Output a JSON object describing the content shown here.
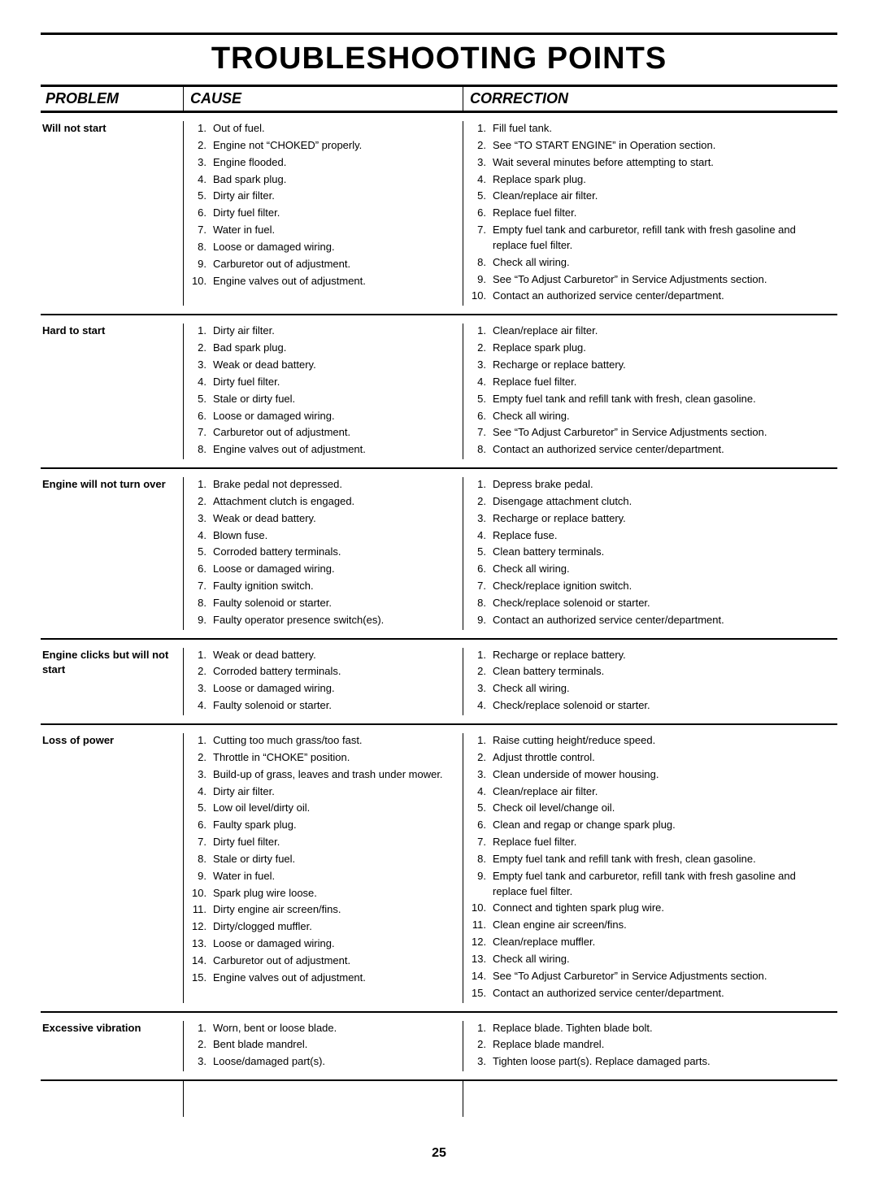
{
  "title": "TROUBLESHOOTING POINTS",
  "page_number": "25",
  "headers": {
    "problem": "PROBLEM",
    "cause": "CAUSE",
    "correction": "CORRECTION"
  },
  "sections": [
    {
      "problem": "Will not start",
      "cause": [
        "Out of fuel.",
        "Engine not “CHOKED” properly.",
        "Engine flooded.",
        "Bad spark plug.",
        "Dirty air filter.",
        "Dirty fuel filter.",
        "Water in fuel.",
        "Loose or damaged wiring.",
        "Carburetor out of adjustment.",
        "Engine valves out of adjustment."
      ],
      "correction": [
        "Fill fuel tank.",
        "See “TO START ENGINE” in Operation section.",
        "Wait several minutes before attempting to start.",
        "Replace spark plug.",
        "Clean/replace air filter.",
        "Replace fuel filter.",
        "Empty fuel tank and carburetor, refill tank with fresh gasoline and replace fuel filter.",
        "Check all wiring.",
        "See “To Adjust Carburetor” in Service Adjustments section.",
        "Contact an authorized service center/department."
      ]
    },
    {
      "problem": "Hard to start",
      "cause": [
        "Dirty air filter.",
        "Bad spark plug.",
        "Weak or dead battery.",
        "Dirty fuel filter.",
        "Stale or dirty fuel.",
        "Loose or damaged wiring.",
        "Carburetor out of adjustment.",
        "Engine valves out of adjustment."
      ],
      "correction": [
        "Clean/replace air filter.",
        "Replace spark plug.",
        "Recharge or replace battery.",
        "Replace fuel filter.",
        "Empty fuel tank and refill tank with fresh, clean gasoline.",
        "Check all wiring.",
        "See “To Adjust Carburetor” in Service Adjustments section.",
        "Contact an authorized service center/department."
      ]
    },
    {
      "problem": "Engine will not turn over",
      "cause": [
        "Brake pedal not depressed.",
        "Attachment clutch is engaged.",
        "Weak or dead battery.",
        "Blown fuse.",
        "Corroded battery terminals.",
        "Loose or damaged wiring.",
        "Faulty ignition switch.",
        "Faulty solenoid or starter.",
        "Faulty operator presence switch(es)."
      ],
      "correction": [
        "Depress brake pedal.",
        "Disengage attachment clutch.",
        "Recharge or replace battery.",
        "Replace fuse.",
        "Clean battery terminals.",
        "Check all wiring.",
        "Check/replace ignition switch.",
        "Check/replace solenoid or starter.",
        "Contact an authorized service center/department."
      ]
    },
    {
      "problem": "Engine clicks but will not start",
      "cause": [
        "Weak or dead battery.",
        "Corroded battery terminals.",
        "Loose or damaged wiring.",
        "Faulty solenoid or starter."
      ],
      "correction": [
        "Recharge or replace battery.",
        "Clean battery terminals.",
        "Check all wiring.",
        "Check/replace solenoid or starter."
      ]
    },
    {
      "problem": "Loss of power",
      "cause": [
        "Cutting too much grass/too fast.",
        "Throttle in “CHOKE” position.",
        "Build-up of grass, leaves and trash under mower.",
        "Dirty air filter.",
        "Low oil level/dirty oil.",
        "Faulty spark plug.",
        "Dirty fuel filter.",
        "Stale or dirty fuel.",
        "Water in fuel.",
        "Spark plug wire loose.",
        "Dirty engine air screen/fins.",
        "Dirty/clogged muffler.",
        "Loose or damaged wiring.",
        "Carburetor out of adjustment.",
        "Engine valves out of adjustment."
      ],
      "correction": [
        "Raise cutting height/reduce speed.",
        "Adjust throttle control.",
        "Clean underside of mower housing.",
        "Clean/replace air filter.",
        "Check oil level/change oil.",
        "Clean and regap or change spark plug.",
        "Replace fuel filter.",
        "Empty fuel tank and refill tank with fresh, clean gasoline.",
        "Empty fuel tank and carburetor, refill tank with fresh gasoline and replace fuel filter.",
        "Connect and tighten spark plug wire.",
        "Clean engine air screen/fins.",
        "Clean/replace muffler.",
        "Check all wiring.",
        "See “To Adjust Carburetor” in Service Adjustments section.",
        "Contact an authorized service center/department."
      ]
    },
    {
      "problem": "Excessive vibration",
      "cause": [
        "Worn, bent or loose blade.",
        "Bent blade mandrel.",
        "Loose/damaged part(s)."
      ],
      "correction": [
        "Replace blade.  Tighten blade bolt.",
        "Replace blade mandrel.",
        "Tighten loose part(s).  Replace damaged parts."
      ]
    }
  ]
}
